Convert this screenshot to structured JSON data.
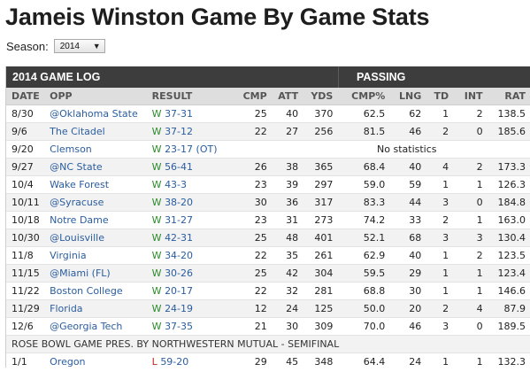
{
  "page": {
    "title": "Jameis Winston Game By Game Stats"
  },
  "season": {
    "label": "Season:",
    "selected": "2014"
  },
  "table": {
    "section_title": "2014 GAME LOG",
    "group_title": "PASSING",
    "columns": [
      "DATE",
      "OPP",
      "RESULT",
      "CMP",
      "ATT",
      "YDS",
      "CMP%",
      "LNG",
      "TD",
      "INT",
      "RAT"
    ],
    "rows": [
      {
        "date": "8/30",
        "opp": "@Oklahoma State",
        "wl": "W",
        "score": "37-31",
        "cmp": "25",
        "att": "40",
        "yds": "370",
        "pct": "62.5",
        "lng": "62",
        "td": "1",
        "int": "2",
        "rat": "138.5"
      },
      {
        "date": "9/6",
        "opp": "The Citadel",
        "wl": "W",
        "score": "37-12",
        "cmp": "22",
        "att": "27",
        "yds": "256",
        "pct": "81.5",
        "lng": "46",
        "td": "2",
        "int": "0",
        "rat": "185.6"
      },
      {
        "date": "9/20",
        "opp": "Clemson",
        "wl": "W",
        "score": "23-17 (OT)",
        "note": "No statistics"
      },
      {
        "date": "9/27",
        "opp": "@NC State",
        "wl": "W",
        "score": "56-41",
        "cmp": "26",
        "att": "38",
        "yds": "365",
        "pct": "68.4",
        "lng": "40",
        "td": "4",
        "int": "2",
        "rat": "173.3"
      },
      {
        "date": "10/4",
        "opp": "Wake Forest",
        "wl": "W",
        "score": "43-3",
        "cmp": "23",
        "att": "39",
        "yds": "297",
        "pct": "59.0",
        "lng": "59",
        "td": "1",
        "int": "1",
        "rat": "126.3"
      },
      {
        "date": "10/11",
        "opp": "@Syracuse",
        "wl": "W",
        "score": "38-20",
        "cmp": "30",
        "att": "36",
        "yds": "317",
        "pct": "83.3",
        "lng": "44",
        "td": "3",
        "int": "0",
        "rat": "184.8"
      },
      {
        "date": "10/18",
        "opp": "Notre Dame",
        "wl": "W",
        "score": "31-27",
        "cmp": "23",
        "att": "31",
        "yds": "273",
        "pct": "74.2",
        "lng": "33",
        "td": "2",
        "int": "1",
        "rat": "163.0"
      },
      {
        "date": "10/30",
        "opp": "@Louisville",
        "wl": "W",
        "score": "42-31",
        "cmp": "25",
        "att": "48",
        "yds": "401",
        "pct": "52.1",
        "lng": "68",
        "td": "3",
        "int": "3",
        "rat": "130.4"
      },
      {
        "date": "11/8",
        "opp": "Virginia",
        "wl": "W",
        "score": "34-20",
        "cmp": "22",
        "att": "35",
        "yds": "261",
        "pct": "62.9",
        "lng": "40",
        "td": "1",
        "int": "2",
        "rat": "123.5"
      },
      {
        "date": "11/15",
        "opp": "@Miami (FL)",
        "wl": "W",
        "score": "30-26",
        "cmp": "25",
        "att": "42",
        "yds": "304",
        "pct": "59.5",
        "lng": "29",
        "td": "1",
        "int": "1",
        "rat": "123.4"
      },
      {
        "date": "11/22",
        "opp": "Boston College",
        "wl": "W",
        "score": "20-17",
        "cmp": "22",
        "att": "32",
        "yds": "281",
        "pct": "68.8",
        "lng": "30",
        "td": "1",
        "int": "1",
        "rat": "146.6"
      },
      {
        "date": "11/29",
        "opp": "Florida",
        "wl": "W",
        "score": "24-19",
        "cmp": "12",
        "att": "24",
        "yds": "125",
        "pct": "50.0",
        "lng": "20",
        "td": "2",
        "int": "4",
        "rat": "87.9"
      },
      {
        "date": "12/6",
        "opp": "@Georgia Tech",
        "wl": "W",
        "score": "37-35",
        "cmp": "21",
        "att": "30",
        "yds": "309",
        "pct": "70.0",
        "lng": "46",
        "td": "3",
        "int": "0",
        "rat": "189.5"
      }
    ],
    "bowl_label": "ROSE BOWL GAME PRES. BY NORTHWESTERN MUTUAL - SEMIFINAL",
    "bowl_rows": [
      {
        "date": "1/1",
        "opp": "Oregon",
        "wl": "L",
        "score": "59-20",
        "cmp": "29",
        "att": "45",
        "yds": "348",
        "pct": "64.4",
        "lng": "24",
        "td": "1",
        "int": "1",
        "rat": "132.3"
      }
    ]
  },
  "colors": {
    "link": "#2a5d9f",
    "win": "#2b8a2b",
    "loss": "#c0281e",
    "header_bg": "#3d3d3d"
  }
}
